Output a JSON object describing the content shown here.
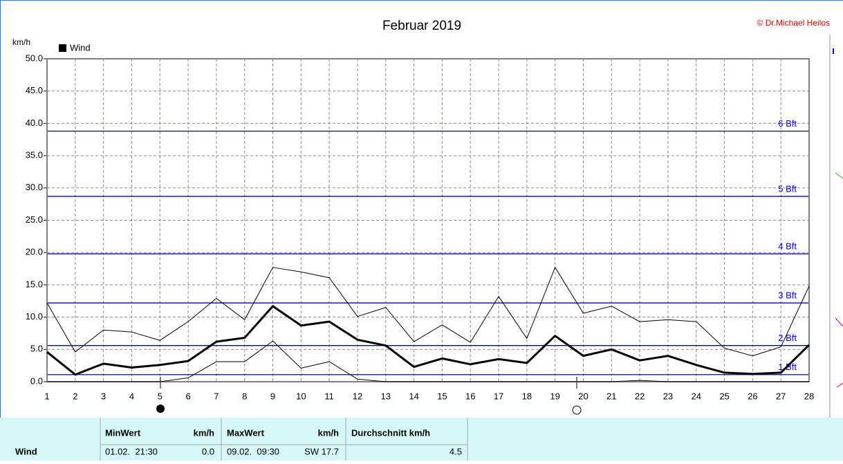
{
  "chart_data": {
    "type": "line",
    "title": "Februar 2019",
    "credit": "© Dr.Michael Heilos",
    "y_label": "km/h",
    "x": [
      1,
      2,
      3,
      4,
      5,
      6,
      7,
      8,
      9,
      10,
      11,
      12,
      13,
      14,
      15,
      16,
      17,
      18,
      19,
      20,
      21,
      22,
      23,
      24,
      25,
      26,
      27,
      28
    ],
    "xlim": [
      1,
      28
    ],
    "xticks": [
      1,
      2,
      3,
      4,
      5,
      6,
      7,
      8,
      9,
      10,
      11,
      12,
      13,
      14,
      15,
      16,
      17,
      18,
      19,
      20,
      21,
      22,
      23,
      24,
      25,
      26,
      27,
      28
    ],
    "ylim": [
      0,
      50
    ],
    "yticks": [
      {
        "value": 0,
        "label": "0.0"
      },
      {
        "value": 5,
        "label": "5.0"
      },
      {
        "value": 10,
        "label": "10.0"
      },
      {
        "value": 15,
        "label": "15.0"
      },
      {
        "value": 20,
        "label": "20.0"
      },
      {
        "value": 25,
        "label": "25.0"
      },
      {
        "value": 30,
        "label": "30.0"
      },
      {
        "value": 35,
        "label": "35.0"
      },
      {
        "value": 40,
        "label": "40.0"
      },
      {
        "value": 45,
        "label": "45.0"
      },
      {
        "value": 50,
        "label": "50.0"
      }
    ],
    "grid": true,
    "series": [
      {
        "name": "Wind",
        "color": "#000000",
        "values": [
          4.6,
          1.1,
          2.8,
          2.2,
          2.6,
          3.2,
          6.2,
          6.8,
          11.7,
          8.7,
          9.3,
          6.5,
          5.6,
          2.3,
          3.6,
          2.7,
          3.5,
          2.9,
          7.1,
          4.0,
          5.0,
          3.3,
          4.0,
          2.6,
          1.4,
          1.2,
          1.4,
          5.7
        ]
      },
      {
        "color": "#000000",
        "values": [
          12.2,
          4.6,
          8.0,
          7.7,
          6.4,
          9.3,
          12.9,
          9.6,
          17.7,
          17.0,
          16.1,
          10.1,
          11.5,
          6.2,
          8.8,
          6.1,
          13.2,
          6.7,
          17.7,
          10.6,
          11.7,
          9.3,
          9.6,
          9.3,
          5.2,
          4.0,
          5.4,
          14.8
        ]
      },
      {
        "color": "#000000",
        "values": [
          0,
          0,
          0,
          0,
          0,
          0.6,
          3.1,
          3.1,
          6.3,
          2.1,
          3.1,
          0.4,
          0,
          0,
          0,
          0,
          0,
          0,
          0,
          0,
          0,
          0.2,
          0,
          0,
          0,
          0,
          0,
          0
        ]
      }
    ],
    "reference_lines": [
      {
        "value": 1.1,
        "label": "1 Bft"
      },
      {
        "value": 5.6,
        "label": "2 Bft"
      },
      {
        "value": 12.2,
        "label": "3 Bft"
      },
      {
        "value": 19.8,
        "label": "4 Bft"
      },
      {
        "value": 28.7,
        "label": "5 Bft"
      },
      {
        "value": 38.8,
        "label": "6 Bft"
      }
    ],
    "reference_color": "#0000cc"
  },
  "stats_table": {
    "row_label": "Wind",
    "headers": [
      "MinWert",
      "km/h",
      "MaxWert",
      "km/h",
      "Durchschnitt km/h"
    ],
    "min_time": "01.02.  21:30",
    "min_value": "0.0",
    "max_time": "09.02.  09:30",
    "max_value": "SW 17.7",
    "mean_value": "4.5"
  }
}
